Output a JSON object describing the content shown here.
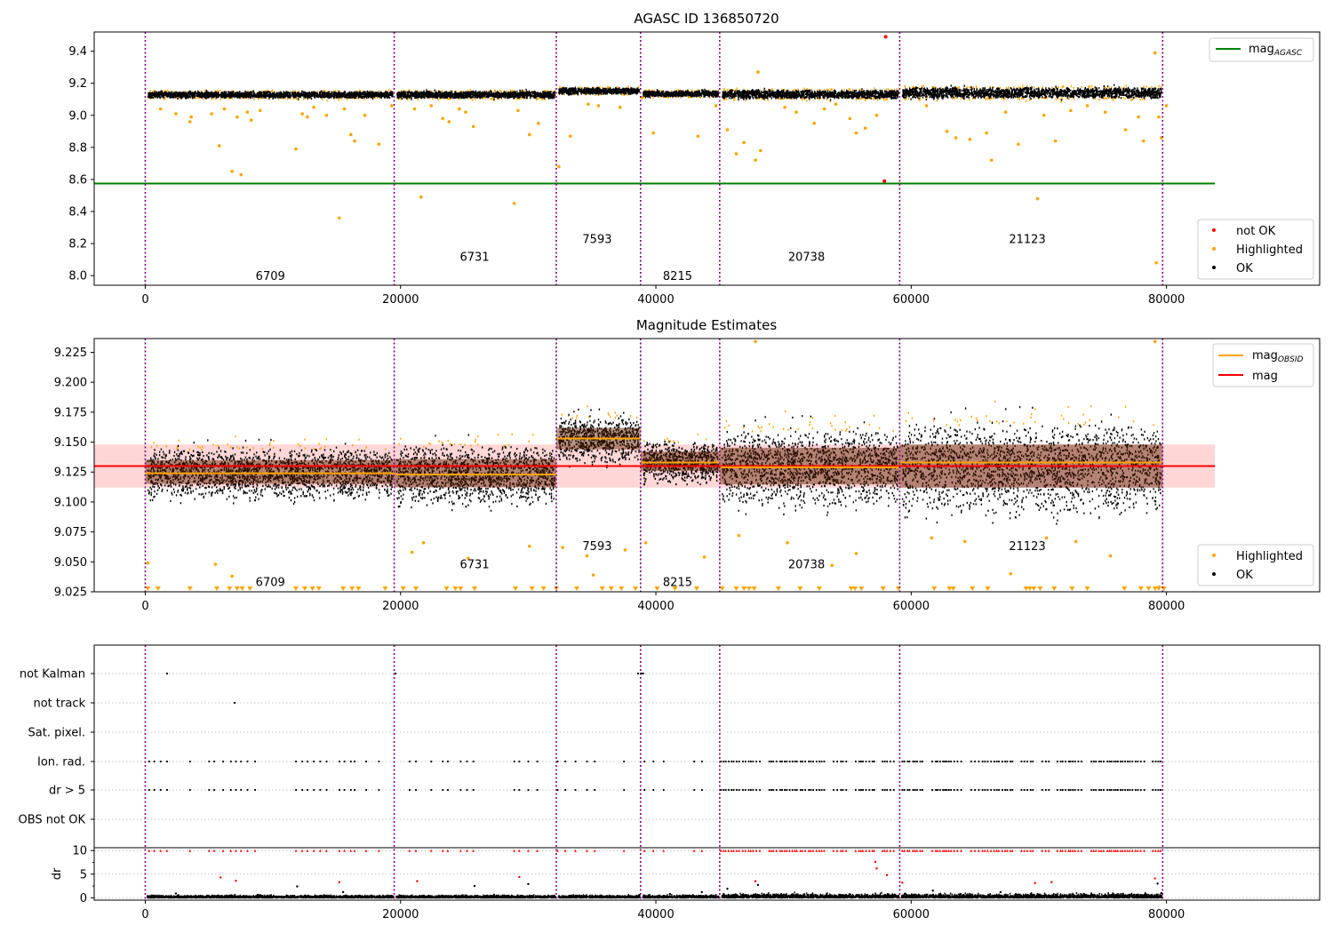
{
  "colors": {
    "ok": "#000000",
    "highlighted": "#ffa500",
    "not_ok": "#ff0000",
    "mag_agasc_line": "#008000",
    "mag_obsid_line": "#ffa500",
    "mag_line": "#ff0000",
    "mag_band": "#ffd6d6",
    "obs_boundary": "#800080",
    "grid": "#b0b0b0"
  },
  "chart_data": [
    {
      "type": "scatter",
      "title": "AGASC ID 136850720",
      "xlim": [
        -4000,
        92000
      ],
      "ylim": [
        7.94,
        9.52
      ],
      "xticks": [
        0,
        20000,
        40000,
        60000,
        80000
      ],
      "xtick_labels": [
        "0",
        "20000",
        "40000",
        "60000",
        "80000"
      ],
      "yticks": [
        8.0,
        8.2,
        8.4,
        8.6,
        8.8,
        9.0,
        9.2,
        9.4
      ],
      "ytick_labels": [
        "8.0",
        "8.2",
        "8.4",
        "8.6",
        "8.8",
        "9.0",
        "9.2",
        "9.4"
      ],
      "obs_boundaries": [
        0,
        19500,
        32200,
        38800,
        45000,
        59100,
        79700
      ],
      "obs_labels": [
        {
          "text": "6709",
          "x": 9800,
          "y": 8.0
        },
        {
          "text": "6731",
          "x": 25800,
          "y": 8.12
        },
        {
          "text": "7593",
          "x": 35400,
          "y": 8.23
        },
        {
          "text": "8215",
          "x": 41700,
          "y": 8.0
        },
        {
          "text": "20738",
          "x": 51800,
          "y": 8.12
        },
        {
          "text": "21123",
          "x": 69100,
          "y": 8.23
        }
      ],
      "mag_agasc": 8.575,
      "mag_agasc_x": [
        -4000,
        83800
      ],
      "segments": [
        {
          "x0": 0,
          "x1": 19500,
          "mean": 9.128,
          "spread": 0.012
        },
        {
          "x0": 19500,
          "x1": 32200,
          "mean": 9.128,
          "spread": 0.013
        },
        {
          "x0": 32200,
          "x1": 38800,
          "mean": 9.152,
          "spread": 0.012
        },
        {
          "x0": 38800,
          "x1": 45000,
          "mean": 9.134,
          "spread": 0.011
        },
        {
          "x0": 45000,
          "x1": 59100,
          "mean": 9.131,
          "spread": 0.016
        },
        {
          "x0": 59100,
          "x1": 79700,
          "mean": 9.14,
          "spread": 0.02
        }
      ],
      "highlighted_points": [
        [
          1200,
          9.04
        ],
        [
          2400,
          9.01
        ],
        [
          3500,
          8.96
        ],
        [
          3600,
          8.99
        ],
        [
          5200,
          9.01
        ],
        [
          5800,
          8.81
        ],
        [
          6200,
          9.04
        ],
        [
          6800,
          8.65
        ],
        [
          7200,
          8.99
        ],
        [
          7500,
          8.63
        ],
        [
          8000,
          9.02
        ],
        [
          8300,
          8.97
        ],
        [
          9000,
          9.03
        ],
        [
          11800,
          8.79
        ],
        [
          12300,
          9.01
        ],
        [
          12700,
          8.99
        ],
        [
          13200,
          9.05
        ],
        [
          14200,
          9.0
        ],
        [
          15200,
          8.36
        ],
        [
          15600,
          9.04
        ],
        [
          16100,
          8.88
        ],
        [
          16400,
          8.84
        ],
        [
          17200,
          9.0
        ],
        [
          18300,
          8.82
        ],
        [
          19300,
          9.06
        ],
        [
          21100,
          9.04
        ],
        [
          21600,
          8.49
        ],
        [
          22400,
          9.06
        ],
        [
          23300,
          8.98
        ],
        [
          23800,
          8.96
        ],
        [
          24600,
          9.04
        ],
        [
          25100,
          9.02
        ],
        [
          25700,
          8.93
        ],
        [
          28900,
          8.45
        ],
        [
          29200,
          9.03
        ],
        [
          30100,
          8.88
        ],
        [
          30800,
          8.95
        ],
        [
          32400,
          8.68
        ],
        [
          33300,
          8.87
        ],
        [
          34700,
          9.07
        ],
        [
          35500,
          9.06
        ],
        [
          37200,
          9.05
        ],
        [
          38900,
          9.11
        ],
        [
          39800,
          8.89
        ],
        [
          43300,
          8.87
        ],
        [
          44700,
          9.06
        ],
        [
          45600,
          8.91
        ],
        [
          46300,
          8.76
        ],
        [
          46900,
          8.83
        ],
        [
          47800,
          8.72
        ],
        [
          48000,
          9.27
        ],
        [
          48200,
          8.78
        ],
        [
          50100,
          9.05
        ],
        [
          51000,
          9.02
        ],
        [
          52400,
          8.95
        ],
        [
          53200,
          9.04
        ],
        [
          54100,
          9.07
        ],
        [
          55200,
          8.98
        ],
        [
          55700,
          8.89
        ],
        [
          56400,
          8.92
        ],
        [
          57300,
          9.0
        ],
        [
          61200,
          9.06
        ],
        [
          62800,
          8.9
        ],
        [
          63500,
          8.86
        ],
        [
          64600,
          8.85
        ],
        [
          65900,
          8.89
        ],
        [
          66300,
          8.72
        ],
        [
          67400,
          9.02
        ],
        [
          68400,
          8.82
        ],
        [
          69900,
          8.48
        ],
        [
          70400,
          9.0
        ],
        [
          71300,
          8.84
        ],
        [
          72500,
          9.03
        ],
        [
          73800,
          9.06
        ],
        [
          75200,
          9.02
        ],
        [
          76800,
          8.91
        ],
        [
          77800,
          8.99
        ],
        [
          78200,
          8.84
        ],
        [
          79100,
          9.39
        ],
        [
          79200,
          8.08
        ],
        [
          79400,
          8.99
        ],
        [
          79600,
          8.86
        ],
        [
          80000,
          9.06
        ]
      ],
      "not_ok_points": [
        [
          58000,
          9.49
        ],
        [
          57900,
          8.59
        ]
      ],
      "legends": [
        {
          "position": "top-right",
          "entries": [
            {
              "label": "mag",
              "subscript": "AGASC",
              "kind": "line",
              "color": "#008000"
            }
          ]
        },
        {
          "position": "bottom-right",
          "entries": [
            {
              "label": "not OK",
              "kind": "point",
              "color": "#ff0000"
            },
            {
              "label": "Highlighted",
              "kind": "point",
              "color": "#ffa500"
            },
            {
              "label": "OK",
              "kind": "point",
              "color": "#000000"
            }
          ]
        }
      ]
    },
    {
      "type": "scatter",
      "title": "Magnitude Estimates",
      "xlim": [
        -4000,
        92000
      ],
      "ylim": [
        9.025,
        9.2365
      ],
      "xticks": [
        0,
        20000,
        40000,
        60000,
        80000
      ],
      "xtick_labels": [
        "0",
        "20000",
        "40000",
        "60000",
        "80000"
      ],
      "yticks": [
        9.025,
        9.05,
        9.075,
        9.1,
        9.125,
        9.15,
        9.175,
        9.2,
        9.225
      ],
      "ytick_labels": [
        "9.025",
        "9.050",
        "9.075",
        "9.100",
        "9.125",
        "9.150",
        "9.175",
        "9.200",
        "9.225"
      ],
      "obs_boundaries": [
        0,
        19500,
        32200,
        38800,
        45000,
        59100,
        79700
      ],
      "obs_labels": [
        {
          "text": "6709",
          "x": 9800,
          "y": 9.0337
        },
        {
          "text": "6731",
          "x": 25800,
          "y": 9.0485
        },
        {
          "text": "7593",
          "x": 35400,
          "y": 9.0635
        },
        {
          "text": "8215",
          "x": 41700,
          "y": 9.0337
        },
        {
          "text": "20738",
          "x": 51800,
          "y": 9.0485
        },
        {
          "text": "21123",
          "x": 69100,
          "y": 9.0635
        }
      ],
      "mag": 9.13,
      "mag_band": [
        9.112,
        9.148
      ],
      "mag_x": [
        -4000,
        83800
      ],
      "mag_obsid": [
        {
          "x0": 0,
          "x1": 19500,
          "value": 9.124
        },
        {
          "x0": 19500,
          "x1": 32200,
          "value": 9.123
        },
        {
          "x0": 32200,
          "x1": 38800,
          "value": 9.153
        },
        {
          "x0": 38800,
          "x1": 45000,
          "value": 9.133
        },
        {
          "x0": 45000,
          "x1": 59100,
          "value": 9.129
        },
        {
          "x0": 59100,
          "x1": 79700,
          "value": 9.133
        }
      ],
      "segments": [
        {
          "x0": 0,
          "x1": 19500,
          "mean": 9.125,
          "spread": 0.011
        },
        {
          "x0": 19500,
          "x1": 32200,
          "mean": 9.124,
          "spread": 0.013
        },
        {
          "x0": 32200,
          "x1": 38800,
          "mean": 9.153,
          "spread": 0.01
        },
        {
          "x0": 38800,
          "x1": 45000,
          "mean": 9.134,
          "spread": 0.009
        },
        {
          "x0": 45000,
          "x1": 59100,
          "mean": 9.13,
          "spread": 0.017
        },
        {
          "x0": 59100,
          "x1": 79700,
          "mean": 9.13,
          "spread": 0.02
        }
      ],
      "clipped_low_x": [
        200,
        1000,
        3500,
        5600,
        6600,
        7200,
        7600,
        8200,
        11800,
        12500,
        13100,
        13600,
        15500,
        16200,
        16700,
        18800,
        20200,
        21200,
        23600,
        24300,
        24700,
        25800,
        29000,
        30300,
        31200,
        32200,
        33800,
        35800,
        36500,
        37300,
        38400,
        40100,
        41500,
        43200,
        45200,
        46300,
        46900,
        47300,
        47700,
        49600,
        51300,
        52800,
        55300,
        55600,
        56100,
        57800,
        59000,
        61800,
        63000,
        63300,
        64800,
        66000,
        69000,
        69300,
        69600,
        70100,
        71200,
        72600,
        73800,
        76700,
        78000,
        78600,
        79100,
        79400,
        79800
      ],
      "legends": [
        {
          "position": "top-right",
          "entries": [
            {
              "label": "mag",
              "subscript": "OBSID",
              "kind": "line",
              "color": "#ffa500"
            },
            {
              "label": "mag",
              "kind": "line",
              "color": "#ff0000"
            }
          ]
        },
        {
          "position": "bottom-right",
          "entries": [
            {
              "label": "Highlighted",
              "kind": "point",
              "color": "#ffa500"
            },
            {
              "label": "OK",
              "kind": "point",
              "color": "#000000"
            }
          ]
        }
      ]
    },
    {
      "type": "scatter",
      "title": "",
      "xlim": [
        -4000,
        92000
      ],
      "obs_boundaries": [
        0,
        19500,
        32200,
        38800,
        45000,
        59100,
        79700
      ],
      "flag_rows": [
        "not Kalman",
        "not track",
        "Sat. pixel.",
        "Ion. rad.",
        "dr > 5",
        "OBS not OK"
      ],
      "flag_points": {
        "not Kalman": [
          1700,
          19600,
          38600,
          38800,
          38900,
          39000,
          59100
        ],
        "not track": [
          7000
        ],
        "Sat. pixel.": [],
        "Ion. rad.": "same_as_dr5",
        "dr > 5": [
          300,
          700,
          1200,
          1700,
          3500,
          5000,
          5400,
          6100,
          6700,
          7100,
          7500,
          8000,
          8600,
          11800,
          12300,
          12700,
          13200,
          13700,
          14200,
          15200,
          15600,
          16100,
          16400,
          17300,
          18300,
          20700,
          21200,
          22400,
          23300,
          23700,
          24700,
          25200,
          25700,
          28900,
          29300,
          30000,
          30700,
          32300,
          32900,
          33700,
          34600,
          35200,
          37500,
          39100,
          39800,
          40600,
          43000,
          43600,
          45100
        ],
        "dense_from": 45300,
        "dense_to": 79700
      },
      "dr": {
        "ylim": [
          -0.5,
          10.6
        ],
        "yticks": [
          0,
          5,
          10
        ],
        "ytick_labels": [
          "0",
          "5",
          "10"
        ],
        "ylabel": "dr",
        "outliers": [
          [
            2400,
            0.9
          ],
          [
            5900,
            4.3
          ],
          [
            7100,
            3.6
          ],
          [
            8800,
            0.6
          ],
          [
            11900,
            2.4
          ],
          [
            15200,
            3.3
          ],
          [
            15500,
            1.2
          ],
          [
            21300,
            3.5
          ],
          [
            25800,
            2.5
          ],
          [
            29300,
            4.4
          ],
          [
            30000,
            2.9
          ],
          [
            38700,
            0.6
          ],
          [
            41100,
            0.8
          ],
          [
            43600,
            1.2
          ],
          [
            45600,
            1.9
          ],
          [
            47800,
            3.5
          ],
          [
            48000,
            2.7
          ],
          [
            57200,
            7.6
          ],
          [
            57300,
            6.2
          ],
          [
            58100,
            4.8
          ],
          [
            59300,
            3.2
          ],
          [
            61700,
            1.5
          ],
          [
            67000,
            1.2
          ],
          [
            69700,
            3.1
          ],
          [
            71000,
            3.3
          ],
          [
            79100,
            4.1
          ],
          [
            79300,
            3.0
          ],
          [
            79600,
            1.0
          ]
        ]
      }
    }
  ]
}
